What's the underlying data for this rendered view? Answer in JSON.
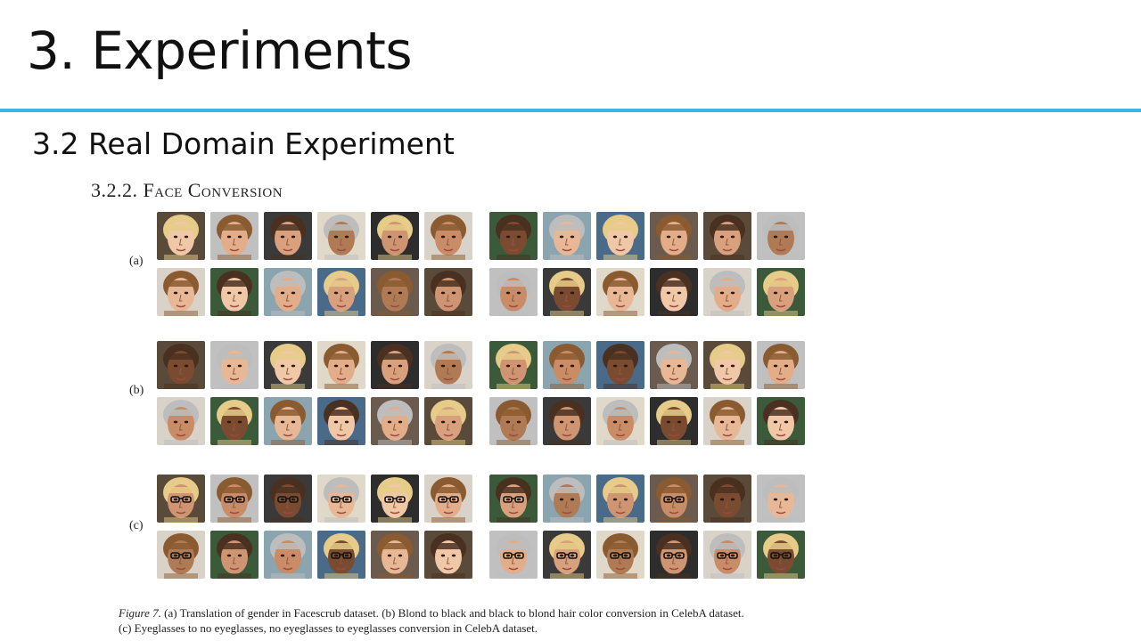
{
  "slide": {
    "title": "3. Experiments",
    "section": "3.2 Real Domain Experiment",
    "subsection": "3.2.2. Face Conversion"
  },
  "figure": {
    "row_labels": [
      "(a)",
      "(b)",
      "(c)"
    ],
    "caption_prefix": "Figure 7.",
    "caption_line1": " (a) Translation of gender in Facescrub dataset. (b) Blond to black and black to blond hair color conversion in CelebA dataset.",
    "caption_line2": "(c) Eyeglasses to no eyeglasses, no eyeglasses to eyeglasses conversion in CelebA dataset.",
    "thumbnail_groups": [
      {
        "label": "(a)",
        "description": "face photos: gender translation",
        "rows": 2,
        "columns": 12
      },
      {
        "label": "(b)",
        "description": "face photos: hair color conversion",
        "rows": 2,
        "columns": 12
      },
      {
        "label": "(c)",
        "description": "face photos: eyeglasses conversion",
        "rows": 2,
        "columns": 12
      }
    ]
  },
  "colors": {
    "accent_rule": "#3fb2e6",
    "title_text": "#111111"
  }
}
